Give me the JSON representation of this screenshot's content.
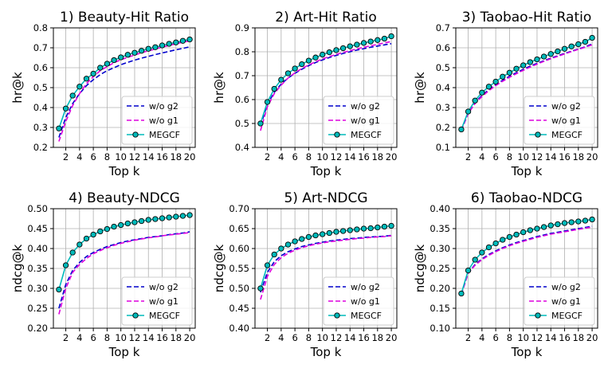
{
  "chart_data": [
    {
      "type": "line",
      "title": "1) Beauty-Hit Ratio",
      "xlabel": "Top k",
      "ylabel": "hr@k",
      "xlim": [
        0.2,
        20.8
      ],
      "ylim": [
        0.2,
        0.8
      ],
      "xticks": [
        2,
        4,
        6,
        8,
        10,
        12,
        14,
        16,
        18,
        20
      ],
      "yticks": [
        0.2,
        0.3,
        0.4,
        0.5,
        0.6,
        0.7,
        0.8
      ],
      "ytick_labels": [
        "0.2",
        "0.3",
        "0.4",
        "0.5",
        "0.6",
        "0.7",
        "0.8"
      ],
      "grid": true,
      "legend_position": "lower-right",
      "x": [
        1,
        2,
        3,
        4,
        5,
        6,
        7,
        8,
        9,
        10,
        11,
        12,
        13,
        14,
        15,
        16,
        17,
        18,
        19,
        20
      ],
      "series": [
        {
          "name": "w/o g2",
          "color": "#0000cc",
          "style": "dashed",
          "marker": false,
          "values": [
            0.25,
            0.35,
            0.42,
            0.47,
            0.51,
            0.54,
            0.565,
            0.585,
            0.6,
            0.615,
            0.627,
            0.638,
            0.648,
            0.657,
            0.666,
            0.674,
            0.682,
            0.69,
            0.697,
            0.705
          ]
        },
        {
          "name": "w/o g1",
          "color": "#dd00dd",
          "style": "dashed",
          "marker": false,
          "values": [
            0.23,
            0.33,
            0.41,
            0.47,
            0.52,
            0.555,
            0.585,
            0.605,
            0.625,
            0.64,
            0.652,
            0.664,
            0.675,
            0.685,
            0.694,
            0.703,
            0.712,
            0.72,
            0.728,
            0.735
          ]
        },
        {
          "name": "MEGCF",
          "color": "#00bbbb",
          "style": "solid",
          "marker": true,
          "values": [
            0.295,
            0.395,
            0.46,
            0.505,
            0.545,
            0.57,
            0.6,
            0.62,
            0.638,
            0.652,
            0.665,
            0.675,
            0.685,
            0.695,
            0.703,
            0.712,
            0.72,
            0.727,
            0.735,
            0.742
          ]
        }
      ]
    },
    {
      "type": "line",
      "title": "2) Art-Hit Ratio",
      "xlabel": "Top k",
      "ylabel": "hr@k",
      "xlim": [
        0.2,
        20.8
      ],
      "ylim": [
        0.4,
        0.9
      ],
      "xticks": [
        2,
        4,
        6,
        8,
        10,
        12,
        14,
        16,
        18,
        20
      ],
      "yticks": [
        0.4,
        0.5,
        0.6,
        0.7,
        0.8,
        0.9
      ],
      "ytick_labels": [
        "0.4",
        "0.5",
        "0.6",
        "0.7",
        "0.8",
        "0.9"
      ],
      "grid": true,
      "legend_position": "lower-right",
      "x": [
        1,
        2,
        3,
        4,
        5,
        6,
        7,
        8,
        9,
        10,
        11,
        12,
        13,
        14,
        15,
        16,
        17,
        18,
        19,
        20
      ],
      "series": [
        {
          "name": "w/o g2",
          "color": "#0000cc",
          "style": "dashed",
          "marker": false,
          "values": [
            0.49,
            0.58,
            0.63,
            0.665,
            0.69,
            0.71,
            0.727,
            0.742,
            0.755,
            0.766,
            0.776,
            0.785,
            0.793,
            0.8,
            0.807,
            0.813,
            0.819,
            0.824,
            0.829,
            0.834
          ]
        },
        {
          "name": "w/o g1",
          "color": "#dd00dd",
          "style": "dashed",
          "marker": false,
          "values": [
            0.47,
            0.57,
            0.625,
            0.66,
            0.69,
            0.712,
            0.73,
            0.745,
            0.758,
            0.77,
            0.78,
            0.789,
            0.797,
            0.805,
            0.812,
            0.819,
            0.825,
            0.831,
            0.837,
            0.843
          ]
        },
        {
          "name": "MEGCF",
          "color": "#00bbbb",
          "style": "solid",
          "marker": true,
          "values": [
            0.5,
            0.59,
            0.645,
            0.683,
            0.71,
            0.73,
            0.748,
            0.763,
            0.776,
            0.788,
            0.798,
            0.807,
            0.815,
            0.823,
            0.83,
            0.837,
            0.843,
            0.849,
            0.855,
            0.865
          ]
        }
      ]
    },
    {
      "type": "line",
      "title": "3) Taobao-Hit Ratio",
      "xlabel": "Top k",
      "ylabel": "hr@k",
      "xlim": [
        0.2,
        20.8
      ],
      "ylim": [
        0.1,
        0.7
      ],
      "xticks": [
        2,
        4,
        6,
        8,
        10,
        12,
        14,
        16,
        18,
        20
      ],
      "yticks": [
        0.1,
        0.2,
        0.3,
        0.4,
        0.5,
        0.6,
        0.7
      ],
      "ytick_labels": [
        "0.1",
        "0.2",
        "0.3",
        "0.4",
        "0.5",
        "0.6",
        "0.7"
      ],
      "grid": true,
      "legend_position": "lower-right",
      "x": [
        1,
        2,
        3,
        4,
        5,
        6,
        7,
        8,
        9,
        10,
        11,
        12,
        13,
        14,
        15,
        16,
        17,
        18,
        19,
        20
      ],
      "series": [
        {
          "name": "w/o g2",
          "color": "#0000cc",
          "style": "dashed",
          "marker": false,
          "values": [
            0.185,
            0.27,
            0.325,
            0.36,
            0.39,
            0.415,
            0.437,
            0.457,
            0.475,
            0.492,
            0.508,
            0.522,
            0.535,
            0.548,
            0.56,
            0.572,
            0.583,
            0.594,
            0.605,
            0.62
          ]
        },
        {
          "name": "w/o g1",
          "color": "#dd00dd",
          "style": "dashed",
          "marker": false,
          "values": [
            0.185,
            0.27,
            0.32,
            0.355,
            0.385,
            0.41,
            0.432,
            0.452,
            0.47,
            0.487,
            0.503,
            0.518,
            0.532,
            0.545,
            0.557,
            0.569,
            0.581,
            0.592,
            0.603,
            0.615
          ]
        },
        {
          "name": "MEGCF",
          "color": "#00bbbb",
          "style": "solid",
          "marker": true,
          "values": [
            0.19,
            0.28,
            0.335,
            0.375,
            0.405,
            0.43,
            0.455,
            0.475,
            0.495,
            0.512,
            0.528,
            0.542,
            0.556,
            0.569,
            0.582,
            0.595,
            0.607,
            0.618,
            0.63,
            0.65
          ]
        }
      ]
    },
    {
      "type": "line",
      "title": "4) Beauty-NDCG",
      "xlabel": "Top k",
      "ylabel": "ndcg@k",
      "xlim": [
        0.2,
        20.8
      ],
      "ylim": [
        0.2,
        0.5
      ],
      "xticks": [
        2,
        4,
        6,
        8,
        10,
        12,
        14,
        16,
        18,
        20
      ],
      "yticks": [
        0.2,
        0.25,
        0.3,
        0.35,
        0.4,
        0.45,
        0.5
      ],
      "ytick_labels": [
        "0.20",
        "0.25",
        "0.30",
        "0.35",
        "0.40",
        "0.45",
        "0.50"
      ],
      "grid": true,
      "legend_position": "lower-right",
      "x": [
        1,
        2,
        3,
        4,
        5,
        6,
        7,
        8,
        9,
        10,
        11,
        12,
        13,
        14,
        15,
        16,
        17,
        18,
        19,
        20
      ],
      "series": [
        {
          "name": "w/o g2",
          "color": "#0000cc",
          "style": "dashed",
          "marker": false,
          "values": [
            0.25,
            0.31,
            0.345,
            0.365,
            0.38,
            0.39,
            0.398,
            0.405,
            0.41,
            0.415,
            0.419,
            0.422,
            0.425,
            0.428,
            0.43,
            0.432,
            0.435,
            0.437,
            0.439,
            0.442
          ]
        },
        {
          "name": "w/o g1",
          "color": "#dd00dd",
          "style": "dashed",
          "marker": false,
          "values": [
            0.235,
            0.3,
            0.34,
            0.36,
            0.375,
            0.387,
            0.395,
            0.402,
            0.408,
            0.413,
            0.417,
            0.421,
            0.424,
            0.427,
            0.429,
            0.432,
            0.434,
            0.436,
            0.438,
            0.44
          ]
        },
        {
          "name": "MEGCF",
          "color": "#00bbbb",
          "style": "solid",
          "marker": true,
          "values": [
            0.297,
            0.358,
            0.39,
            0.41,
            0.425,
            0.435,
            0.443,
            0.449,
            0.455,
            0.459,
            0.463,
            0.466,
            0.469,
            0.472,
            0.474,
            0.476,
            0.478,
            0.48,
            0.482,
            0.484
          ]
        }
      ]
    },
    {
      "type": "line",
      "title": "5) Art-NDCG",
      "xlabel": "Top k",
      "ylabel": "ndcg@k",
      "xlim": [
        0.2,
        20.8
      ],
      "ylim": [
        0.4,
        0.7
      ],
      "xticks": [
        2,
        4,
        6,
        8,
        10,
        12,
        14,
        16,
        18,
        20
      ],
      "yticks": [
        0.4,
        0.45,
        0.5,
        0.55,
        0.6,
        0.65,
        0.7
      ],
      "ytick_labels": [
        "0.40",
        "0.45",
        "0.50",
        "0.55",
        "0.60",
        "0.65",
        "0.70"
      ],
      "grid": true,
      "legend_position": "lower-right",
      "x": [
        1,
        2,
        3,
        4,
        5,
        6,
        7,
        8,
        9,
        10,
        11,
        12,
        13,
        14,
        15,
        16,
        17,
        18,
        19,
        20
      ],
      "series": [
        {
          "name": "w/o g2",
          "color": "#0000cc",
          "style": "dashed",
          "marker": false,
          "values": [
            0.49,
            0.54,
            0.567,
            0.582,
            0.592,
            0.599,
            0.605,
            0.609,
            0.613,
            0.616,
            0.619,
            0.621,
            0.623,
            0.625,
            0.626,
            0.628,
            0.629,
            0.63,
            0.631,
            0.633
          ]
        },
        {
          "name": "w/o g1",
          "color": "#dd00dd",
          "style": "dashed",
          "marker": false,
          "values": [
            0.472,
            0.53,
            0.56,
            0.577,
            0.588,
            0.596,
            0.602,
            0.607,
            0.611,
            0.614,
            0.617,
            0.619,
            0.621,
            0.623,
            0.625,
            0.626,
            0.628,
            0.629,
            0.63,
            0.632
          ]
        },
        {
          "name": "MEGCF",
          "color": "#00bbbb",
          "style": "solid",
          "marker": true,
          "values": [
            0.5,
            0.558,
            0.585,
            0.6,
            0.61,
            0.618,
            0.624,
            0.629,
            0.633,
            0.636,
            0.639,
            0.642,
            0.644,
            0.646,
            0.648,
            0.65,
            0.651,
            0.653,
            0.655,
            0.657
          ]
        }
      ]
    },
    {
      "type": "line",
      "title": "6) Taobao-NDCG",
      "xlabel": "Top k",
      "ylabel": "ndcg@k",
      "xlim": [
        0.2,
        20.8
      ],
      "ylim": [
        0.1,
        0.4
      ],
      "xticks": [
        2,
        4,
        6,
        8,
        10,
        12,
        14,
        16,
        18,
        20
      ],
      "yticks": [
        0.1,
        0.15,
        0.2,
        0.25,
        0.3,
        0.35,
        0.4
      ],
      "ytick_labels": [
        "0.10",
        "0.15",
        "0.20",
        "0.25",
        "0.30",
        "0.35",
        "0.40"
      ],
      "grid": true,
      "legend_position": "lower-right",
      "x": [
        1,
        2,
        3,
        4,
        5,
        6,
        7,
        8,
        9,
        10,
        11,
        12,
        13,
        14,
        15,
        16,
        17,
        18,
        19,
        20
      ],
      "series": [
        {
          "name": "w/o g2",
          "color": "#0000cc",
          "style": "dashed",
          "marker": false,
          "values": [
            0.185,
            0.238,
            0.26,
            0.274,
            0.285,
            0.294,
            0.302,
            0.309,
            0.315,
            0.32,
            0.325,
            0.33,
            0.334,
            0.338,
            0.341,
            0.344,
            0.347,
            0.35,
            0.353,
            0.356
          ]
        },
        {
          "name": "w/o g1",
          "color": "#dd00dd",
          "style": "dashed",
          "marker": false,
          "values": [
            0.185,
            0.238,
            0.258,
            0.272,
            0.283,
            0.292,
            0.3,
            0.307,
            0.313,
            0.318,
            0.323,
            0.328,
            0.332,
            0.336,
            0.339,
            0.342,
            0.345,
            0.348,
            0.351,
            0.354
          ]
        },
        {
          "name": "MEGCF",
          "color": "#00bbbb",
          "style": "solid",
          "marker": true,
          "values": [
            0.187,
            0.245,
            0.272,
            0.29,
            0.303,
            0.313,
            0.322,
            0.329,
            0.335,
            0.341,
            0.346,
            0.35,
            0.354,
            0.358,
            0.361,
            0.364,
            0.366,
            0.368,
            0.37,
            0.373
          ]
        }
      ]
    }
  ]
}
